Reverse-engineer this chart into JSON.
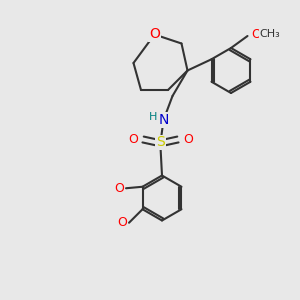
{
  "bg_color": "#e8e8e8",
  "bond_color": "#333333",
  "bond_width": 1.5,
  "atom_colors": {
    "O": "#ff0000",
    "N": "#0000cc",
    "S": "#cccc00",
    "H": "#008080",
    "C": "#333333"
  },
  "font_size_atom": 9,
  "fig_width": 3.0,
  "fig_height": 3.0
}
